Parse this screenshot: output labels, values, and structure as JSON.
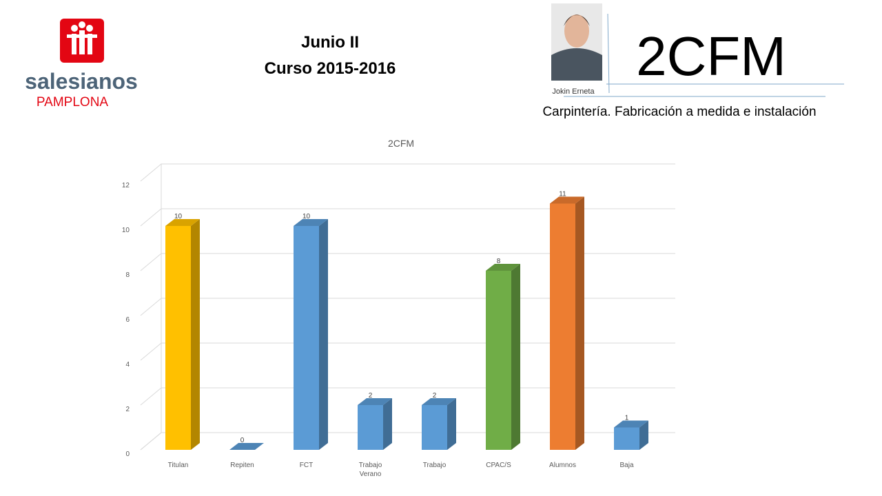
{
  "header": {
    "title_line1": "Junio II",
    "title_line2": "Curso 2015-2016",
    "group": "2CFM",
    "person": "Jokin Erneta",
    "course_name": "Carpintería. Fabricación a medida e instalación",
    "logo_name": "salesianos",
    "logo_city": "PAMPLONA"
  },
  "chart_data": {
    "type": "bar",
    "title": "2CFM",
    "categories": [
      "Titulan",
      "Repiten",
      "FCT",
      "Trabajo Verano",
      "Trabajo",
      "CPAC/S",
      "Alumnos",
      "Baja"
    ],
    "values": [
      10,
      0,
      10,
      2,
      2,
      8,
      11,
      1
    ],
    "colors": [
      "#ffc000",
      "#5b9bd5",
      "#5b9bd5",
      "#5b9bd5",
      "#5b9bd5",
      "#70ad47",
      "#ed7d31",
      "#5b9bd5"
    ],
    "ylim": [
      0,
      12
    ],
    "yticks": [
      0,
      2,
      4,
      6,
      8,
      10,
      12
    ],
    "grid": true
  }
}
